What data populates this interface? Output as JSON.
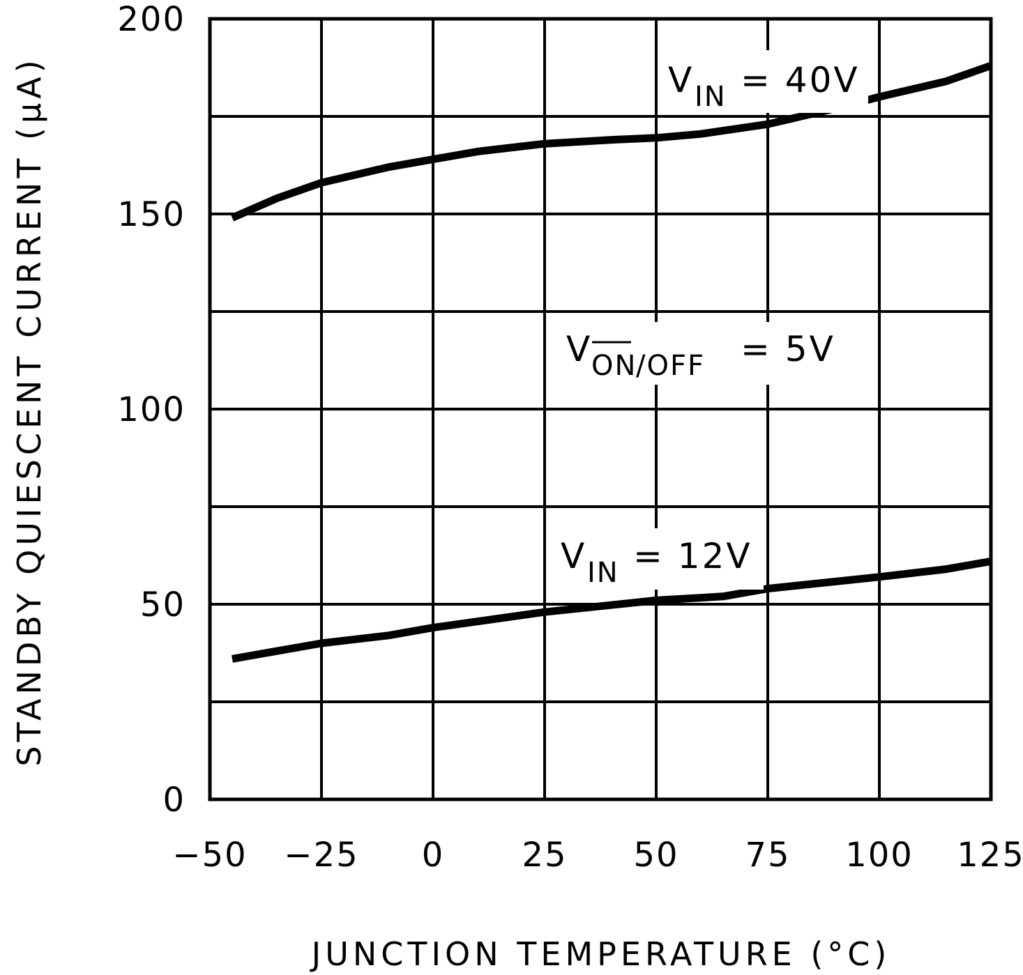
{
  "chart_data": {
    "type": "line",
    "title": "",
    "xlabel": "JUNCTION TEMPERATURE (°C)",
    "ylabel": "STANDBY QUIESCENT CURRENT (μA)",
    "xlim": [
      -50,
      125
    ],
    "ylim": [
      0,
      200
    ],
    "xticks": [
      -50,
      -25,
      0,
      25,
      50,
      75,
      100,
      125
    ],
    "yticks": [
      0,
      50,
      100,
      150,
      200
    ],
    "grid": true,
    "series": [
      {
        "name": "VIN = 40V",
        "x": [
          -45,
          -35,
          -25,
          -10,
          0,
          10,
          25,
          40,
          50,
          60,
          75,
          90,
          100,
          115,
          125
        ],
        "y": [
          149,
          154,
          158,
          162,
          164,
          166,
          168,
          169,
          169.5,
          170.5,
          173,
          177,
          180,
          184,
          188
        ]
      },
      {
        "name": "VIN = 12V",
        "x": [
          -45,
          -25,
          -10,
          0,
          25,
          50,
          65,
          75,
          100,
          115,
          125
        ],
        "y": [
          36,
          40,
          42,
          44,
          48,
          51,
          52,
          54,
          57,
          59,
          61
        ]
      }
    ],
    "annotations": {
      "vin40": {
        "main": "V",
        "sub": "IN",
        "rest": "= 40V"
      },
      "vonoff": {
        "main": "V",
        "sub_overline": "ON",
        "sub_rest": "/OFF",
        "rest": "= 5V"
      },
      "vin12": {
        "main": "V",
        "sub": "IN",
        "rest": "= 12V"
      }
    }
  }
}
